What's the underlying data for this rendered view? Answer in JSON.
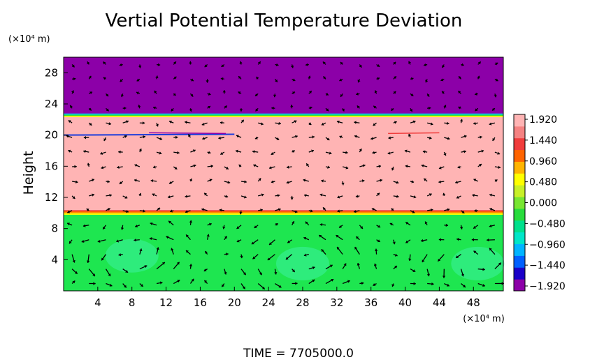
{
  "chart_data": {
    "type": "heatmap",
    "title": "Vertial Potential Temperature Deviation",
    "ylabel": "Height",
    "xunit_label": "(×10⁴ m)",
    "yunit_label": "(×10⁴ m)",
    "time_label": "TIME  =  7705000.0",
    "x_ticks": [
      4,
      8,
      12,
      16,
      20,
      24,
      28,
      32,
      36,
      40,
      44,
      48
    ],
    "y_ticks": [
      4,
      8,
      12,
      16,
      20,
      24,
      28
    ],
    "xlim": [
      0,
      51.5
    ],
    "ylim": [
      0,
      30
    ],
    "colorbar": {
      "labels": [
        "1.920",
        "1.440",
        "0.960",
        "0.480",
        "0.000",
        "−0.480",
        "−0.960",
        "−1.440",
        "−1.920"
      ],
      "min": -1.92,
      "max": 1.92,
      "colors": [
        "#8c00a8",
        "#1a00c8",
        "#0060ff",
        "#00b4ff",
        "#00e6c8",
        "#00e08c",
        "#28dc3c",
        "#78e632",
        "#c8f028",
        "#ffff00",
        "#ffb400",
        "#ff6400",
        "#f03c3c",
        "#f58282",
        "#ffb4b4"
      ]
    },
    "field_layers": [
      {
        "y_range": [
          22.5,
          30
        ],
        "value": -1.92,
        "color": "#8c00a8"
      },
      {
        "y_range": [
          10,
          22.5
        ],
        "value": 1.92,
        "color": "#ffb4b4"
      },
      {
        "y_range": [
          0,
          10
        ],
        "value": 0.1,
        "color": "#1ee650"
      }
    ],
    "vortex_centers": [
      {
        "x": 8,
        "y": 4.5
      },
      {
        "x": 28,
        "y": 3.5
      },
      {
        "x": 48.5,
        "y": 3.5
      }
    ]
  }
}
